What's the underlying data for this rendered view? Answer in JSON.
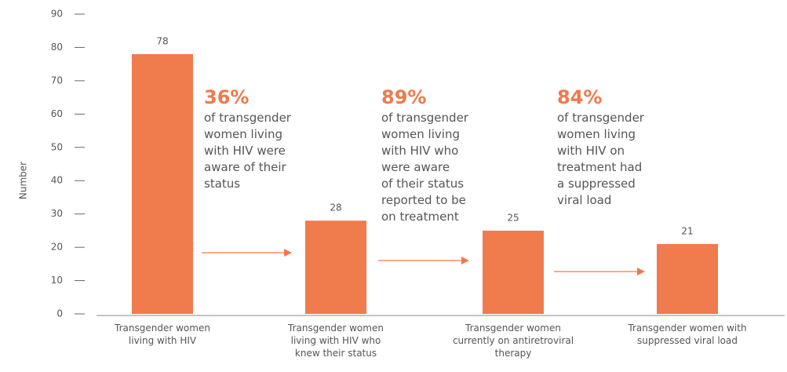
{
  "chart_data": {
    "type": "bar",
    "y_label": "Number",
    "categories": [
      "Transgender women\nliving with HIV",
      "Transgender women\nliving with HIV who\nknew their status",
      "Transgender women\ncurrently on antiretroviral\ntherapy",
      "Transgender women with\nsuppressed viral load"
    ],
    "values": [
      78,
      28,
      25,
      21
    ],
    "color": "#f07b4d",
    "ylim": [
      0,
      90
    ],
    "yticks": [
      0,
      10,
      20,
      30,
      40,
      50,
      60,
      70,
      80,
      90
    ],
    "annotations": [
      {
        "percent": "36%",
        "text": "of transgender\nwomen living\nwith HIV were\naware of their\nstatus"
      },
      {
        "percent": "89%",
        "text": "of  transgender\nwomen living\nwith HIV who\nwere aware\nof their status\nreported to be\non treatment"
      },
      {
        "percent": "84%",
        "text": "of  transgender\nwomen living\nwith HIV on\ntreatment had\na suppressed\nviral load"
      }
    ]
  }
}
